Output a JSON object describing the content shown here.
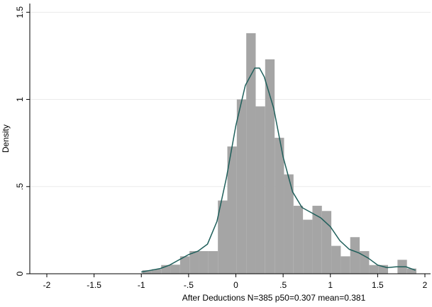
{
  "chart_data": {
    "type": "histogram",
    "xlabel": "After Deductions N=385 p50=0.307 mean=0.381",
    "ylabel": "Density",
    "bins": [
      -0.99,
      -0.89,
      -0.79,
      -0.69,
      -0.59,
      -0.49,
      -0.39,
      -0.29,
      -0.19,
      -0.09,
      0.01,
      0.11,
      0.21,
      0.31,
      0.41,
      0.51,
      0.61,
      0.71,
      0.81,
      0.91,
      1.01,
      1.11,
      1.21,
      1.31,
      1.41,
      1.51,
      1.61,
      1.71,
      1.81,
      1.91
    ],
    "values": [
      0.02,
      0.026,
      0.05,
      0.052,
      0.1,
      0.13,
      0.13,
      0.13,
      0.42,
      0.73,
      1.0,
      1.38,
      0.96,
      1.23,
      0.78,
      0.57,
      0.39,
      0.31,
      0.39,
      0.36,
      0.16,
      0.1,
      0.21,
      0.13,
      0.05,
      0.05,
      0,
      0.08,
      0.03
    ],
    "color": "#a5a5a5",
    "kde": {
      "color": "#1f5f5b",
      "x": [
        -1.0,
        -0.9,
        -0.8,
        -0.7,
        -0.6,
        -0.5,
        -0.4,
        -0.3,
        -0.2,
        -0.1,
        0,
        0.1,
        0.2,
        0.25,
        0.3,
        0.4,
        0.5,
        0.6,
        0.7,
        0.8,
        0.9,
        1.0,
        1.1,
        1.2,
        1.3,
        1.4,
        1.5,
        1.6,
        1.7,
        1.8,
        1.9
      ],
      "values": [
        0.01,
        0.02,
        0.03,
        0.05,
        0.08,
        0.11,
        0.13,
        0.17,
        0.3,
        0.55,
        0.85,
        1.08,
        1.18,
        1.18,
        1.13,
        0.95,
        0.67,
        0.47,
        0.38,
        0.35,
        0.32,
        0.27,
        0.19,
        0.14,
        0.12,
        0.09,
        0.05,
        0.035,
        0.04,
        0.04,
        0.02
      ]
    },
    "xlim": [
      -2.18,
      2.06
    ],
    "ylim": [
      0,
      1.55
    ],
    "xticks": [
      -2,
      -1.5,
      -1,
      {
        "value": -0.5,
        "label": "-.5"
      },
      0,
      {
        "value": 0.5,
        "label": ".5"
      },
      1,
      1.5,
      2
    ],
    "yticks": [
      0,
      {
        "value": 0.5,
        "label": ".5"
      },
      1,
      1.5
    ],
    "grid": true
  }
}
